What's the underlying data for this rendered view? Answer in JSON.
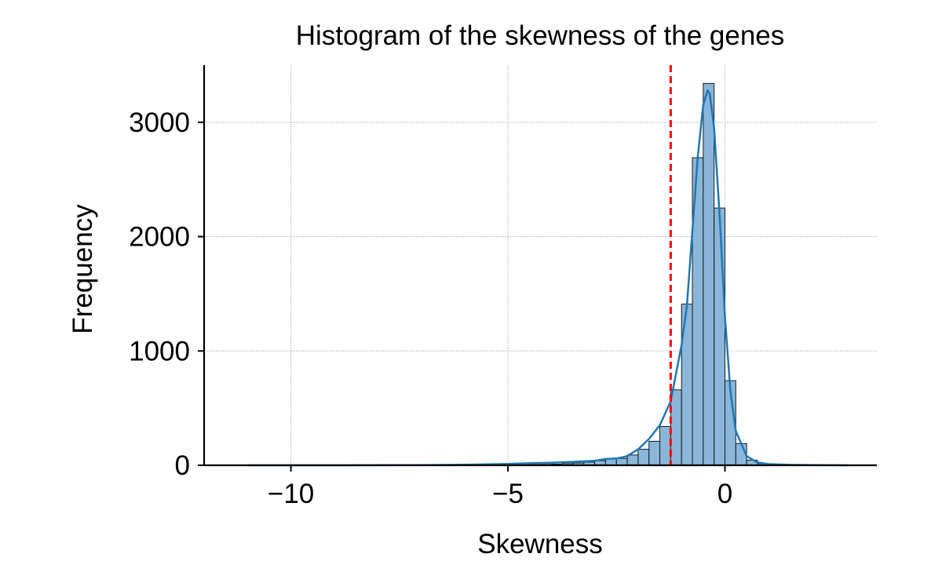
{
  "chart_data": {
    "type": "bar",
    "title": "Histogram of the skewness of the genes",
    "xlabel": "Skewness",
    "ylabel": "Frequency",
    "xlim": [
      -12.0,
      3.5
    ],
    "ylim": [
      0,
      3500
    ],
    "x_ticks": [
      -10,
      -5,
      0
    ],
    "x_tick_labels": [
      "−10",
      "−5",
      "0"
    ],
    "y_ticks": [
      0,
      1000,
      2000,
      3000
    ],
    "y_tick_labels": [
      "0",
      "1000",
      "2000",
      "3000"
    ],
    "grid": true,
    "bins": {
      "edges": [
        -11.0,
        -10.75,
        -10.5,
        -10.25,
        -10.0,
        -9.75,
        -9.5,
        -9.25,
        -9.0,
        -8.75,
        -8.5,
        -8.25,
        -8.0,
        -7.75,
        -7.5,
        -7.25,
        -7.0,
        -6.75,
        -6.5,
        -6.25,
        -6.0,
        -5.75,
        -5.5,
        -5.25,
        -5.0,
        -4.75,
        -4.5,
        -4.25,
        -4.0,
        -3.75,
        -3.5,
        -3.25,
        -3.0,
        -2.75,
        -2.5,
        -2.25,
        -2.0,
        -1.75,
        -1.5,
        -1.25,
        -1.0,
        -0.75,
        -0.5,
        -0.25,
        0.0,
        0.25,
        0.5,
        0.75,
        1.0,
        1.25,
        1.5,
        1.75,
        2.0,
        2.25,
        2.5,
        2.75,
        3.0
      ],
      "counts": [
        1,
        0,
        0,
        0,
        0,
        0,
        0,
        0,
        0,
        0,
        0,
        0,
        1,
        0,
        0,
        0,
        0,
        0,
        0,
        0,
        1,
        2,
        2,
        3,
        4,
        5,
        6,
        8,
        10,
        15,
        20,
        28,
        40,
        55,
        60,
        90,
        140,
        210,
        340,
        660,
        1410,
        2690,
        3340,
        2250,
        740,
        190,
        45,
        15,
        6,
        3,
        2,
        1,
        1,
        0,
        0,
        1
      ]
    },
    "kde": {
      "x": [
        -11.0,
        -9.0,
        -7.0,
        -6.0,
        -5.0,
        -4.5,
        -4.0,
        -3.5,
        -3.0,
        -2.75,
        -2.5,
        -2.25,
        -2.0,
        -1.75,
        -1.5,
        -1.25,
        -1.0,
        -0.875,
        -0.75,
        -0.625,
        -0.5,
        -0.4,
        -0.35,
        -0.25,
        -0.125,
        0.0,
        0.125,
        0.25,
        0.5,
        0.75,
        1.0,
        1.5,
        2.0,
        2.5,
        2.85
      ],
      "y": [
        0,
        0,
        2,
        5,
        12,
        18,
        22,
        30,
        40,
        55,
        60,
        80,
        140,
        230,
        350,
        560,
        1050,
        1400,
        2050,
        2700,
        3150,
        3280,
        3250,
        2950,
        2200,
        1300,
        650,
        300,
        80,
        25,
        10,
        4,
        2,
        1,
        0
      ]
    },
    "reference_line": {
      "x": -1.25,
      "color": "#ff0000",
      "style": "dashed"
    },
    "colors": {
      "bar_fill": "#8ab6d9",
      "bar_edge": "#1a1a1a",
      "kde": "#1f77b4",
      "grid": "#b0b0b0"
    }
  }
}
